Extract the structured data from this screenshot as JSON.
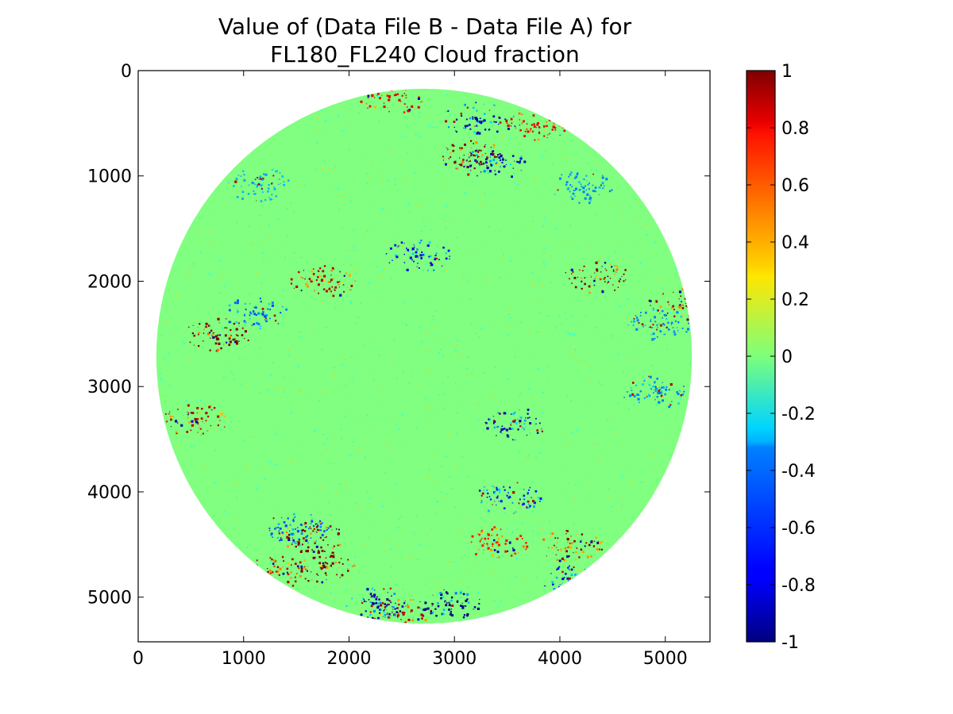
{
  "chart_data": {
    "type": "heatmap",
    "title": [
      "Value of (Data File B - Data File A) for",
      "FL180_FL240 Cloud fraction"
    ],
    "xlabel": "",
    "ylabel": "",
    "xlim": [
      0,
      5424
    ],
    "ylim": [
      5424,
      0
    ],
    "x_ticks": [
      "0",
      "1000",
      "2000",
      "3000",
      "4000",
      "5000"
    ],
    "y_ticks": [
      "0",
      "1000",
      "2000",
      "3000",
      "4000",
      "5000"
    ],
    "grid": false,
    "disk": {
      "center_x": 2712,
      "center_y": 2712,
      "radius": 2540
    },
    "background_value": 0,
    "colorbar": {
      "min": -1,
      "max": 1,
      "colormap": "jet",
      "tick_labels": [
        "1",
        "0.8",
        "0.6",
        "0.4",
        "0.2",
        "0",
        "-0.2",
        "-0.4",
        "-0.6",
        "-0.8",
        "-1"
      ]
    },
    "features": [
      {
        "x": 1650,
        "y": 4420,
        "value": 1.0
      },
      {
        "x": 1750,
        "y": 4700,
        "value": 1.0
      },
      {
        "x": 1300,
        "y": 4750,
        "value": 0.9
      },
      {
        "x": 2470,
        "y": 5150,
        "value": 0.9
      },
      {
        "x": 3400,
        "y": 4480,
        "value": 0.7
      },
      {
        "x": 4100,
        "y": 4500,
        "value": 1.0
      },
      {
        "x": 3150,
        "y": 800,
        "value": 1.0
      },
      {
        "x": 2400,
        "y": 250,
        "value": 0.8
      },
      {
        "x": 3800,
        "y": 500,
        "value": 0.8
      },
      {
        "x": 750,
        "y": 2500,
        "value": 1.0
      },
      {
        "x": 4350,
        "y": 1950,
        "value": 1.0
      },
      {
        "x": 5150,
        "y": 2200,
        "value": 1.0
      },
      {
        "x": 1750,
        "y": 1990,
        "value": 0.9
      },
      {
        "x": 540,
        "y": 3310,
        "value": 0.9
      },
      {
        "x": 2250,
        "y": 5050,
        "value": -0.9
      },
      {
        "x": 2950,
        "y": 5050,
        "value": -1.0
      },
      {
        "x": 3500,
        "y": 4050,
        "value": -0.7
      },
      {
        "x": 4100,
        "y": 4850,
        "value": -0.8
      },
      {
        "x": 3200,
        "y": 450,
        "value": -0.9
      },
      {
        "x": 3350,
        "y": 880,
        "value": -0.9
      },
      {
        "x": 2650,
        "y": 1750,
        "value": -0.8
      },
      {
        "x": 3550,
        "y": 3350,
        "value": -0.9
      },
      {
        "x": 1100,
        "y": 2300,
        "value": -0.6
      },
      {
        "x": 4950,
        "y": 2400,
        "value": -0.5
      },
      {
        "x": 1500,
        "y": 4350,
        "value": -0.6
      },
      {
        "x": 1150,
        "y": 1080,
        "value": -0.4
      },
      {
        "x": 4200,
        "y": 1100,
        "value": -0.5
      },
      {
        "x": 4900,
        "y": 3050,
        "value": -0.5
      }
    ]
  }
}
